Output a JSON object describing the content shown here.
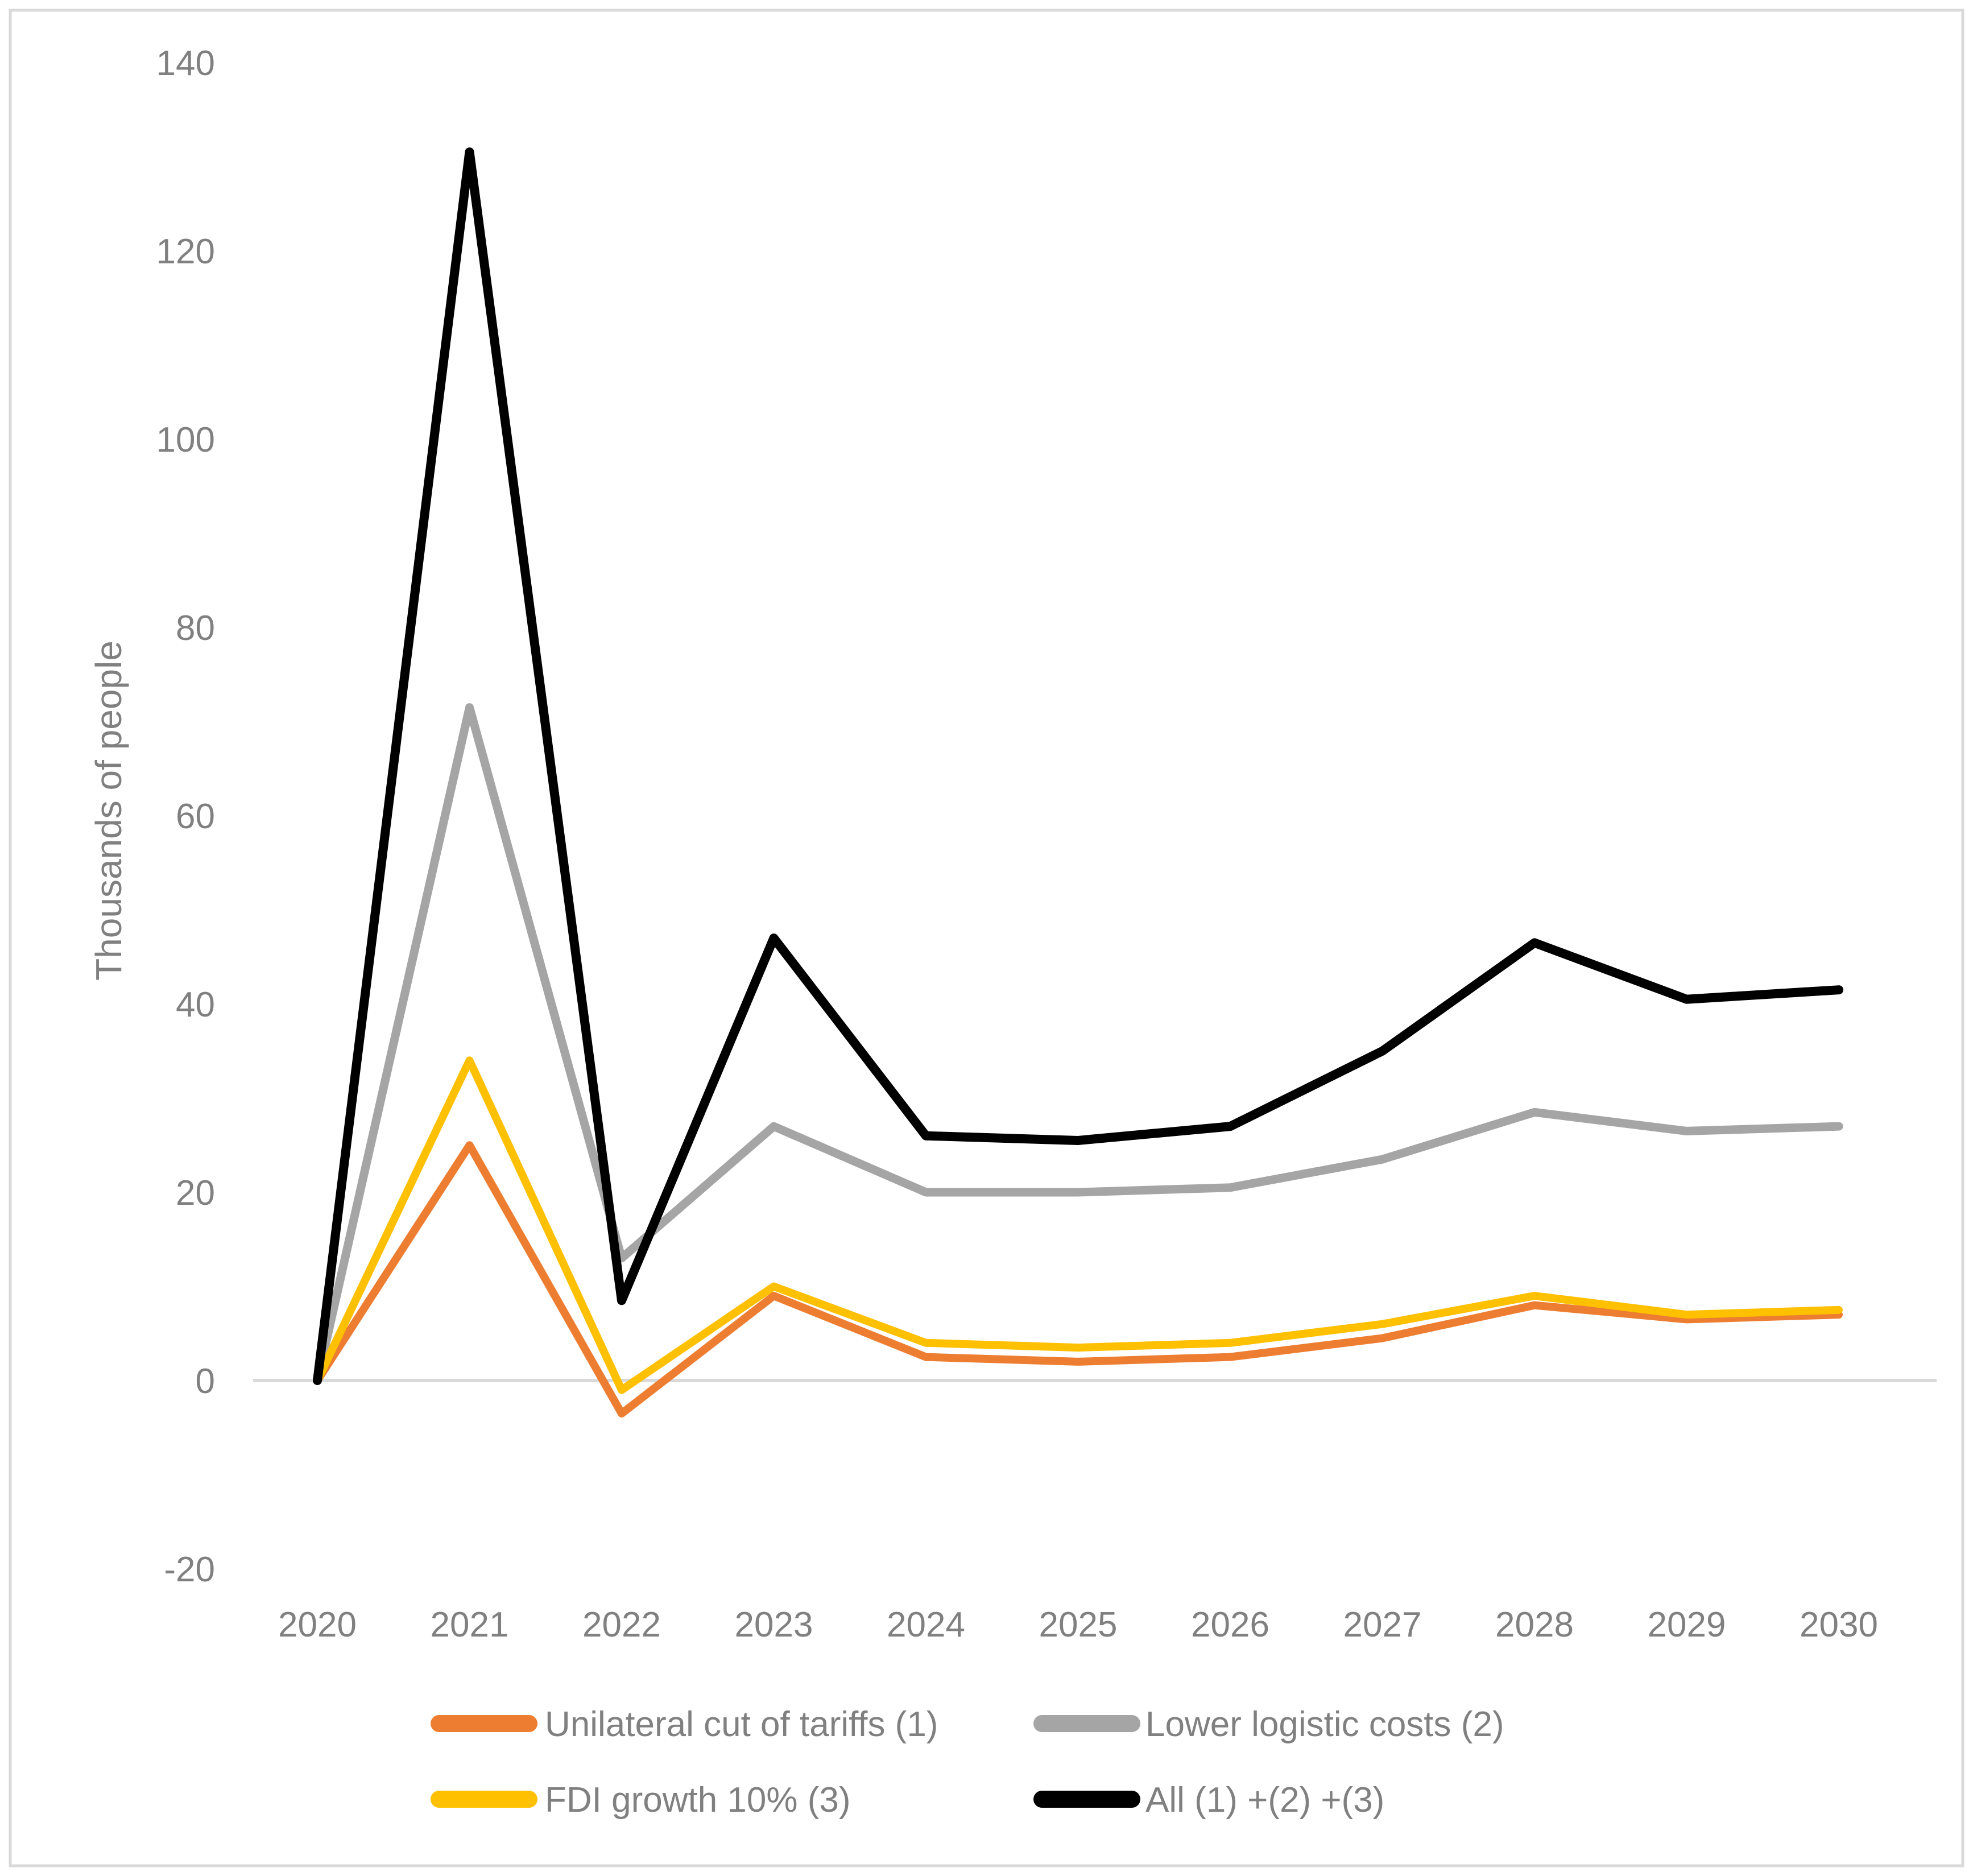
{
  "page": {
    "background": "#FFFFFF",
    "border_color": "#D9D9D9"
  },
  "chart_data": {
    "type": "line",
    "title": "",
    "xlabel": "",
    "ylabel": "Thousands of people",
    "categories": [
      "2020",
      "2021",
      "2022",
      "2023",
      "2024",
      "2025",
      "2026",
      "2027",
      "2028",
      "2029",
      "2030"
    ],
    "y_ticks": [
      140,
      120,
      100,
      80,
      60,
      40,
      20,
      0,
      -20
    ],
    "ylim": [
      -20,
      145
    ],
    "grid": "zero-line-only",
    "axis_text_color": "#808080",
    "zero_line_color": "#D9D9D9",
    "legend_position": "bottom",
    "legend_rows": [
      [
        0,
        1
      ],
      [
        2,
        3
      ]
    ],
    "series": [
      {
        "name": "Unilateral cut of tariffs (1)",
        "color": "#ED7D31",
        "values": [
          0,
          25,
          -3.5,
          9,
          2.5,
          2,
          2.5,
          4.5,
          8,
          6.5,
          7
        ]
      },
      {
        "name": "Lower logistic costs (2)",
        "color": "#A5A5A5",
        "values": [
          0,
          71.5,
          13,
          27,
          20,
          20,
          20.5,
          23.5,
          28.5,
          26.5,
          27
        ]
      },
      {
        "name": "FDI growth 10% (3)",
        "color": "#FFC000",
        "values": [
          0,
          34,
          -1,
          10,
          4,
          3.5,
          4,
          6,
          9,
          7,
          7.5
        ]
      },
      {
        "name": "All (1) +(2) +(3)",
        "color": "#000000",
        "values": [
          0,
          130.5,
          8.5,
          47,
          26,
          25.5,
          27,
          35,
          46.5,
          40.5,
          41.5
        ]
      }
    ]
  }
}
